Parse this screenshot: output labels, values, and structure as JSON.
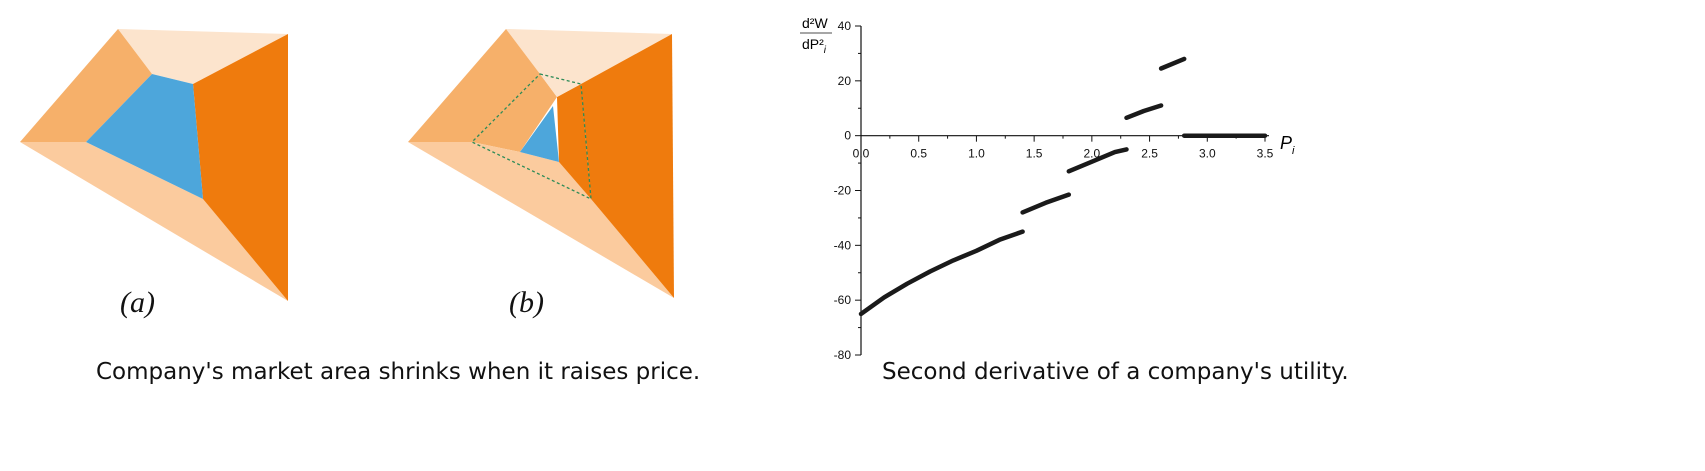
{
  "colors": {
    "light_peach": "#FCE4CD",
    "peach": "#FBCB9E",
    "sandy_orange": "#F6B06A",
    "dark_orange": "#EF7B0D",
    "blue": "#4DA6DB",
    "dashed_green": "#2E8B57",
    "curve": "#1a1a1a"
  },
  "left_figure": {
    "sublabel_a": "(a)",
    "sublabel_b": "(b)",
    "caption": "Company's market area shrinks when it raises price."
  },
  "right_figure": {
    "caption": "Second derivative of a company's utility.",
    "ylabel_num": "d²W",
    "ylabel_den": "dP²",
    "ylabel_den_sub": "i",
    "xlabel": "P",
    "xlabel_sub": "i"
  },
  "chart_data": {
    "type": "line",
    "title": "",
    "xlabel": "P_i",
    "ylabel": "d²W/dP_i²",
    "xlim": [
      0,
      3.5
    ],
    "ylim": [
      -80,
      40
    ],
    "xticks": [
      0.0,
      0.5,
      1.0,
      1.5,
      2.0,
      2.5,
      3.0,
      3.5
    ],
    "xtick_labels": [
      "0.0",
      "0.5",
      "1.0",
      "1.5",
      "2.0",
      "2.5",
      "3.0",
      "3.5"
    ],
    "yticks": [
      40,
      20,
      0,
      -20,
      -40,
      -60,
      -80
    ],
    "ytick_labels": [
      "40",
      "20",
      "0",
      "-20",
      "-40",
      "-60",
      "-80"
    ],
    "grid": false,
    "legend": "none",
    "segments": [
      {
        "x": [
          0.0,
          0.2,
          0.4,
          0.6,
          0.8,
          1.0,
          1.2,
          1.4
        ],
        "y": [
          -65,
          -59,
          -54,
          -49.5,
          -45.5,
          -42,
          -38,
          -35
        ]
      },
      {
        "x": [
          1.4,
          1.6,
          1.8
        ],
        "y": [
          -28,
          -24.5,
          -21.5
        ]
      },
      {
        "x": [
          1.8,
          2.0,
          2.2,
          2.3
        ],
        "y": [
          -13,
          -9.5,
          -6,
          -5
        ]
      },
      {
        "x": [
          2.3,
          2.45,
          2.6
        ],
        "y": [
          6.5,
          9,
          11
        ]
      },
      {
        "x": [
          2.6,
          2.8
        ],
        "y": [
          24.5,
          28
        ]
      },
      {
        "x": [
          2.8,
          3.0,
          3.25,
          3.5
        ],
        "y": [
          0,
          0,
          0,
          0
        ]
      }
    ]
  }
}
